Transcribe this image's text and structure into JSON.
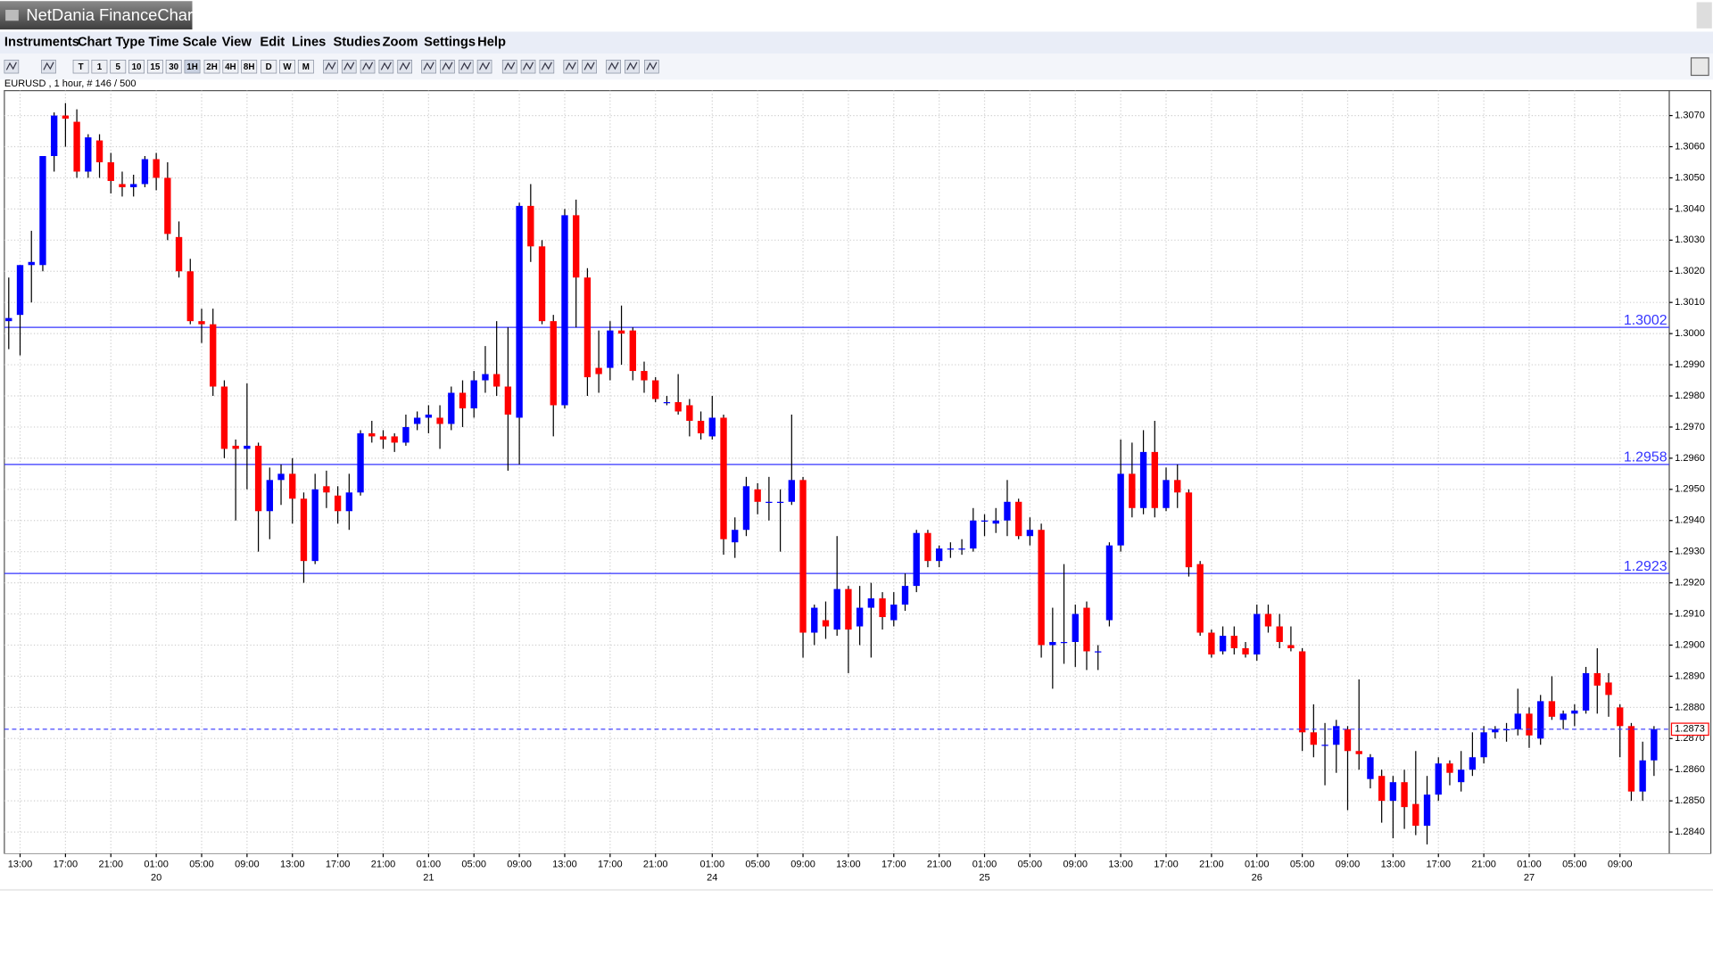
{
  "window": {
    "title": "NetDania FinanceChart"
  },
  "menu": [
    "Instruments",
    "Chart Type",
    "Time Scale",
    "View",
    "Edit",
    "Lines",
    "Studies",
    "Zoom",
    "Settings",
    "Help"
  ],
  "toolbar": [
    "T",
    "1",
    "5",
    "10",
    "15",
    "30",
    "1H",
    "2H",
    "4H",
    "8H",
    "D",
    "W",
    "M"
  ],
  "chart_data": {
    "type": "candlestick",
    "title": "EURUSD , 1 hour, # 146 / 500",
    "up_color": "#0000ff",
    "down_color": "#ff0000",
    "level_color": "#3333ff",
    "grid": true,
    "ylim": [
      1.2833,
      1.3078
    ],
    "yticks": [
      {
        "value": 1.284,
        "label": "1.2840"
      },
      {
        "value": 1.285,
        "label": "1.2850"
      },
      {
        "value": 1.286,
        "label": "1.2860"
      },
      {
        "value": 1.287,
        "label": "1.2870"
      },
      {
        "value": 1.288,
        "label": "1.2880"
      },
      {
        "value": 1.289,
        "label": "1.2890"
      },
      {
        "value": 1.29,
        "label": "1.2900"
      },
      {
        "value": 1.291,
        "label": "1.2910"
      },
      {
        "value": 1.292,
        "label": "1.2920"
      },
      {
        "value": 1.293,
        "label": "1.2930"
      },
      {
        "value": 1.294,
        "label": "1.2940"
      },
      {
        "value": 1.295,
        "label": "1.2950"
      },
      {
        "value": 1.296,
        "label": "1.2960"
      },
      {
        "value": 1.297,
        "label": "1.2970"
      },
      {
        "value": 1.298,
        "label": "1.2980"
      },
      {
        "value": 1.299,
        "label": "1.2990"
      },
      {
        "value": 1.3,
        "label": "1.3000"
      },
      {
        "value": 1.301,
        "label": "1.3010"
      },
      {
        "value": 1.302,
        "label": "1.3020"
      },
      {
        "value": 1.303,
        "label": "1.3030"
      },
      {
        "value": 1.304,
        "label": "1.3040"
      },
      {
        "value": 1.305,
        "label": "1.3050"
      },
      {
        "value": 1.306,
        "label": "1.3060"
      },
      {
        "value": 1.307,
        "label": "1.3070"
      }
    ],
    "xticks": [
      {
        "value": 1,
        "label": "13:00"
      },
      {
        "value": 5,
        "label": "17:00"
      },
      {
        "value": 9,
        "label": "21:00"
      },
      {
        "value": 13,
        "label": "01:00"
      },
      {
        "value": 17,
        "label": "05:00"
      },
      {
        "value": 21,
        "label": "09:00"
      },
      {
        "value": 25,
        "label": "13:00"
      },
      {
        "value": 29,
        "label": "17:00"
      },
      {
        "value": 33,
        "label": "21:00"
      },
      {
        "value": 37,
        "label": "01:00"
      },
      {
        "value": 41,
        "label": "05:00"
      },
      {
        "value": 45,
        "label": "09:00"
      },
      {
        "value": 49,
        "label": "13:00"
      },
      {
        "value": 53,
        "label": "17:00"
      },
      {
        "value": 57,
        "label": "21:00"
      },
      {
        "value": 62,
        "label": "01:00"
      },
      {
        "value": 66,
        "label": "05:00"
      },
      {
        "value": 70,
        "label": "09:00"
      },
      {
        "value": 74,
        "label": "13:00"
      },
      {
        "value": 78,
        "label": "17:00"
      },
      {
        "value": 82,
        "label": "21:00"
      },
      {
        "value": 86,
        "label": "01:00"
      },
      {
        "value": 90,
        "label": "05:00"
      },
      {
        "value": 94,
        "label": "09:00"
      },
      {
        "value": 98,
        "label": "13:00"
      },
      {
        "value": 102,
        "label": "17:00"
      },
      {
        "value": 106,
        "label": "21:00"
      },
      {
        "value": 110,
        "label": "01:00"
      },
      {
        "value": 114,
        "label": "05:00"
      },
      {
        "value": 118,
        "label": "09:00"
      },
      {
        "value": 122,
        "label": "13:00"
      },
      {
        "value": 126,
        "label": "17:00"
      },
      {
        "value": 130,
        "label": "21:00"
      },
      {
        "value": 134,
        "label": "01:00"
      },
      {
        "value": 138,
        "label": "05:00"
      },
      {
        "value": 142,
        "label": "09:00"
      }
    ],
    "day_ticks": [
      {
        "value": 13,
        "label": "20"
      },
      {
        "value": 37,
        "label": "21"
      },
      {
        "value": 62,
        "label": "24"
      },
      {
        "value": 86,
        "label": "25"
      },
      {
        "value": 110,
        "label": "26"
      },
      {
        "value": 134,
        "label": "27"
      }
    ],
    "levels": [
      1.3002,
      1.2958,
      1.2923
    ],
    "last": 1.2873,
    "ohlc": [
      [
        1.3004,
        1.3018,
        1.2995,
        1.3005
      ],
      [
        1.3006,
        1.3022,
        1.2993,
        1.3022
      ],
      [
        1.3022,
        1.3033,
        1.301,
        1.3023
      ],
      [
        1.3022,
        1.3057,
        1.302,
        1.3057
      ],
      [
        1.3057,
        1.3071,
        1.3052,
        1.307
      ],
      [
        1.307,
        1.3074,
        1.306,
        1.3069
      ],
      [
        1.3068,
        1.3072,
        1.305,
        1.3052
      ],
      [
        1.3052,
        1.3064,
        1.305,
        1.3063
      ],
      [
        1.3062,
        1.3064,
        1.305,
        1.3055
      ],
      [
        1.3055,
        1.3058,
        1.3045,
        1.3049
      ],
      [
        1.3048,
        1.3052,
        1.3044,
        1.3047
      ],
      [
        1.3047,
        1.3051,
        1.3044,
        1.3048
      ],
      [
        1.3048,
        1.3057,
        1.3047,
        1.3056
      ],
      [
        1.3056,
        1.3058,
        1.3046,
        1.305
      ],
      [
        1.305,
        1.3055,
        1.303,
        1.3032
      ],
      [
        1.3031,
        1.3036,
        1.3018,
        1.302
      ],
      [
        1.302,
        1.3024,
        1.3003,
        1.3004
      ],
      [
        1.3004,
        1.3008,
        1.2997,
        1.3003
      ],
      [
        1.3003,
        1.3008,
        1.298,
        1.2983
      ],
      [
        1.2983,
        1.2985,
        1.296,
        1.2963
      ],
      [
        1.2964,
        1.2966,
        1.294,
        1.2963
      ],
      [
        1.2963,
        1.2984,
        1.295,
        1.2964
      ],
      [
        1.2964,
        1.2965,
        1.293,
        1.2943
      ],
      [
        1.2943,
        1.2957,
        1.2934,
        1.2953
      ],
      [
        1.2953,
        1.2958,
        1.2945,
        1.2955
      ],
      [
        1.2955,
        1.296,
        1.2939,
        1.2947
      ],
      [
        1.2947,
        1.2949,
        1.292,
        1.2927
      ],
      [
        1.2927,
        1.2955,
        1.2926,
        1.295
      ],
      [
        1.2951,
        1.2956,
        1.2944,
        1.2949
      ],
      [
        1.2948,
        1.2951,
        1.2939,
        1.2943
      ],
      [
        1.2943,
        1.2955,
        1.2937,
        1.2949
      ],
      [
        1.2949,
        1.2969,
        1.2948,
        1.2968
      ],
      [
        1.2968,
        1.2972,
        1.2965,
        1.2967
      ],
      [
        1.2967,
        1.2969,
        1.2963,
        1.2966
      ],
      [
        1.2967,
        1.2968,
        1.2962,
        1.2965
      ],
      [
        1.2965,
        1.2974,
        1.2964,
        1.297
      ],
      [
        1.2971,
        1.2975,
        1.2969,
        1.2973
      ],
      [
        1.2973,
        1.2977,
        1.2968,
        1.2974
      ],
      [
        1.2973,
        1.2977,
        1.2963,
        1.2971
      ],
      [
        1.2971,
        1.2983,
        1.2969,
        1.2981
      ],
      [
        1.2981,
        1.2985,
        1.297,
        1.2976
      ],
      [
        1.2976,
        1.2988,
        1.2973,
        1.2985
      ],
      [
        1.2985,
        1.2996,
        1.2981,
        1.2987
      ],
      [
        1.2987,
        1.3004,
        1.298,
        1.2983
      ],
      [
        1.2983,
        1.3002,
        1.2956,
        1.2974
      ],
      [
        1.2973,
        1.3042,
        1.2958,
        1.3041
      ],
      [
        1.3041,
        1.3048,
        1.3023,
        1.3028
      ],
      [
        1.3028,
        1.303,
        1.3003,
        1.3004
      ],
      [
        1.3004,
        1.3006,
        1.2967,
        1.2977
      ],
      [
        1.2977,
        1.304,
        1.2976,
        1.3038
      ],
      [
        1.3038,
        1.3043,
        1.3002,
        1.3018
      ],
      [
        1.3018,
        1.3021,
        1.298,
        1.2986
      ],
      [
        1.2989,
        1.3001,
        1.2981,
        1.2987
      ],
      [
        1.2989,
        1.3004,
        1.2985,
        1.3001
      ],
      [
        1.3001,
        1.3009,
        1.299,
        1.3
      ],
      [
        1.3001,
        1.3002,
        1.2985,
        1.2988
      ],
      [
        1.2988,
        1.2991,
        1.2981,
        1.2985
      ],
      [
        1.2985,
        1.2986,
        1.2978,
        1.2979
      ],
      [
        1.2978,
        1.298,
        1.2977,
        1.2978
      ],
      [
        1.2978,
        1.2987,
        1.2974,
        1.2975
      ],
      [
        1.2977,
        1.2979,
        1.2967,
        1.2972
      ],
      [
        1.2972,
        1.2975,
        1.2966,
        1.2968
      ],
      [
        1.2967,
        1.298,
        1.2966,
        1.2973
      ],
      [
        1.2973,
        1.2974,
        1.2929,
        1.2934
      ],
      [
        1.2933,
        1.2941,
        1.2928,
        1.2937
      ],
      [
        1.2937,
        1.2954,
        1.2935,
        1.2951
      ],
      [
        1.295,
        1.2952,
        1.2942,
        1.2946
      ],
      [
        1.2946,
        1.2954,
        1.294,
        1.2946
      ],
      [
        1.2946,
        1.295,
        1.293,
        1.2946
      ],
      [
        1.2946,
        1.2974,
        1.2945,
        1.2953
      ],
      [
        1.2953,
        1.2954,
        1.2896,
        1.2904
      ],
      [
        1.2904,
        1.2913,
        1.29,
        1.2912
      ],
      [
        1.2908,
        1.2914,
        1.2902,
        1.2906
      ],
      [
        1.2905,
        1.2935,
        1.2903,
        1.2918
      ],
      [
        1.2918,
        1.2919,
        1.2891,
        1.2905
      ],
      [
        1.2906,
        1.2919,
        1.29,
        1.2912
      ],
      [
        1.2912,
        1.292,
        1.2896,
        1.2915
      ],
      [
        1.2915,
        1.2917,
        1.2905,
        1.2909
      ],
      [
        1.2908,
        1.2917,
        1.2906,
        1.2913
      ],
      [
        1.2913,
        1.2923,
        1.2911,
        1.2919
      ],
      [
        1.2919,
        1.2937,
        1.2917,
        1.2936
      ],
      [
        1.2936,
        1.2937,
        1.2925,
        1.2927
      ],
      [
        1.2927,
        1.2932,
        1.2925,
        1.2931
      ],
      [
        1.2931,
        1.2933,
        1.2928,
        1.2931
      ],
      [
        1.2931,
        1.2934,
        1.2929,
        1.2931
      ],
      [
        1.2931,
        1.2944,
        1.293,
        1.294
      ],
      [
        1.294,
        1.2942,
        1.2935,
        1.294
      ],
      [
        1.2939,
        1.2944,
        1.2936,
        1.294
      ],
      [
        1.294,
        1.2953,
        1.2935,
        1.2946
      ],
      [
        1.2946,
        1.2947,
        1.2934,
        1.2935
      ],
      [
        1.2935,
        1.2941,
        1.2932,
        1.2937
      ],
      [
        1.2937,
        1.2939,
        1.2896,
        1.29
      ],
      [
        1.29,
        1.2912,
        1.2886,
        1.2901
      ],
      [
        1.2901,
        1.2926,
        1.2894,
        1.2901
      ],
      [
        1.2901,
        1.2913,
        1.2893,
        1.291
      ],
      [
        1.2912,
        1.2914,
        1.2892,
        1.2898
      ],
      [
        1.2898,
        1.29,
        1.2892,
        1.2898
      ],
      [
        1.2908,
        1.2933,
        1.2906,
        1.2932
      ],
      [
        1.2932,
        1.2966,
        1.293,
        1.2955
      ],
      [
        1.2955,
        1.2965,
        1.2941,
        1.2944
      ],
      [
        1.2944,
        1.2969,
        1.2942,
        1.2962
      ],
      [
        1.2962,
        1.2972,
        1.2941,
        1.2944
      ],
      [
        1.2944,
        1.2957,
        1.2943,
        1.2953
      ],
      [
        1.2953,
        1.2958,
        1.2944,
        1.2949
      ],
      [
        1.2949,
        1.295,
        1.2922,
        1.2925
      ],
      [
        1.2926,
        1.2927,
        1.2903,
        1.2904
      ],
      [
        1.2904,
        1.2905,
        1.2896,
        1.2897
      ],
      [
        1.2898,
        1.2906,
        1.2897,
        1.2903
      ],
      [
        1.2903,
        1.2906,
        1.2897,
        1.2899
      ],
      [
        1.2899,
        1.2901,
        1.2896,
        1.2897
      ],
      [
        1.2897,
        1.2913,
        1.2895,
        1.291
      ],
      [
        1.291,
        1.2913,
        1.2904,
        1.2906
      ],
      [
        1.2906,
        1.291,
        1.2899,
        1.2901
      ],
      [
        1.29,
        1.2906,
        1.2898,
        1.2899
      ],
      [
        1.2898,
        1.2899,
        1.2866,
        1.2872
      ],
      [
        1.2872,
        1.2881,
        1.2864,
        1.2868
      ],
      [
        1.2868,
        1.2875,
        1.2855,
        1.2868
      ],
      [
        1.2868,
        1.2876,
        1.2859,
        1.2874
      ],
      [
        1.2873,
        1.2874,
        1.2847,
        1.2866
      ],
      [
        1.2866,
        1.2889,
        1.286,
        1.2865
      ],
      [
        1.2857,
        1.2865,
        1.2854,
        1.2864
      ],
      [
        1.2858,
        1.286,
        1.2843,
        1.285
      ],
      [
        1.285,
        1.2858,
        1.2838,
        1.2856
      ],
      [
        1.2856,
        1.286,
        1.2841,
        1.2848
      ],
      [
        1.2849,
        1.2866,
        1.2839,
        1.2842
      ],
      [
        1.2842,
        1.2858,
        1.2836,
        1.2852
      ],
      [
        1.2852,
        1.2864,
        1.285,
        1.2862
      ],
      [
        1.2862,
        1.2863,
        1.2855,
        1.2859
      ],
      [
        1.2856,
        1.2866,
        1.2853,
        1.286
      ],
      [
        1.286,
        1.2872,
        1.2858,
        1.2864
      ],
      [
        1.2864,
        1.2874,
        1.2862,
        1.2872
      ],
      [
        1.2872,
        1.2874,
        1.287,
        1.2873
      ],
      [
        1.2873,
        1.2875,
        1.2869,
        1.2873
      ],
      [
        1.2873,
        1.2886,
        1.2871,
        1.2878
      ],
      [
        1.2878,
        1.288,
        1.2867,
        1.2871
      ],
      [
        1.287,
        1.2884,
        1.2868,
        1.2882
      ],
      [
        1.2882,
        1.289,
        1.2876,
        1.2877
      ],
      [
        1.2876,
        1.2879,
        1.2873,
        1.2878
      ],
      [
        1.2878,
        1.2881,
        1.2874,
        1.2879
      ],
      [
        1.2879,
        1.2893,
        1.2878,
        1.2891
      ],
      [
        1.2891,
        1.2899,
        1.2878,
        1.2887
      ],
      [
        1.2888,
        1.2891,
        1.2877,
        1.2884
      ],
      [
        1.288,
        1.2881,
        1.2864,
        1.2874
      ],
      [
        1.2874,
        1.2875,
        1.285,
        1.2853
      ],
      [
        1.2853,
        1.2869,
        1.285,
        1.2863
      ],
      [
        1.2863,
        1.2874,
        1.2858,
        1.2873
      ]
    ]
  }
}
